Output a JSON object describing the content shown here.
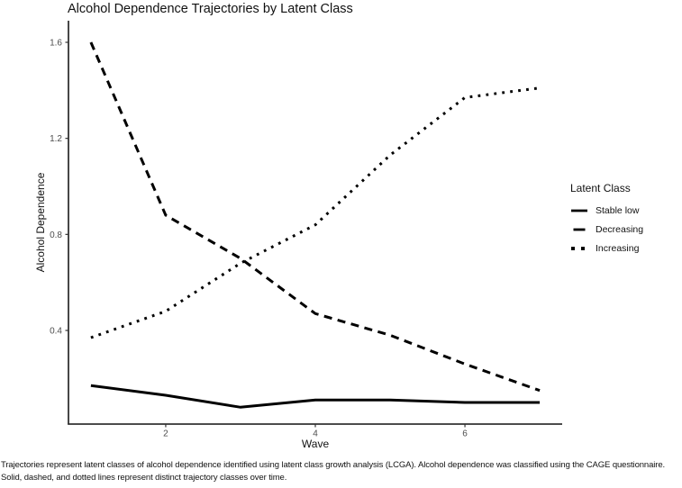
{
  "figure": {
    "caption_line1": "Trajectories represent latent classes of alcohol dependence identified using latent class growth analysis (LCGA). Alcohol dependence was classified using the CAGE questionnaire.",
    "caption_line2": "Solid, dashed, and dotted lines represent distinct trajectory classes over time."
  },
  "chart_data": {
    "type": "line",
    "title": "Alcohol Dependence Trajectories by Latent Class",
    "xlabel": "Wave",
    "ylabel": "Alcohol Dependence",
    "x": [
      1,
      2,
      3,
      4,
      5,
      6,
      7
    ],
    "xlim": [
      0.7,
      7.3
    ],
    "ylim": [
      0.01,
      1.69
    ],
    "x_tick_values": [
      2,
      4,
      6
    ],
    "x_tick_labels": [
      "2",
      "4",
      "6"
    ],
    "y_tick_values": [
      0.4,
      0.8,
      1.2,
      1.6
    ],
    "y_tick_labels": [
      "0.4",
      "0.8",
      "1.2",
      "1.6"
    ],
    "grid": false,
    "legend_title": "Latent Class",
    "legend_position": "right",
    "series": [
      {
        "name": "Stable low",
        "line_style": "solid",
        "color": "#000000",
        "values": [
          0.17,
          0.13,
          0.08,
          0.11,
          0.11,
          0.1,
          0.1
        ]
      },
      {
        "name": "Decreasing",
        "line_style": "dashed",
        "color": "#000000",
        "values": [
          1.6,
          0.88,
          0.7,
          0.47,
          0.38,
          0.26,
          0.15
        ]
      },
      {
        "name": "Increasing",
        "line_style": "dotted",
        "color": "#000000",
        "values": [
          0.37,
          0.48,
          0.68,
          0.84,
          1.13,
          1.37,
          1.41
        ]
      }
    ],
    "colors": {
      "axis_text": "#4d4d4d",
      "axis_line": "#333333",
      "line_color": "#000000"
    }
  }
}
